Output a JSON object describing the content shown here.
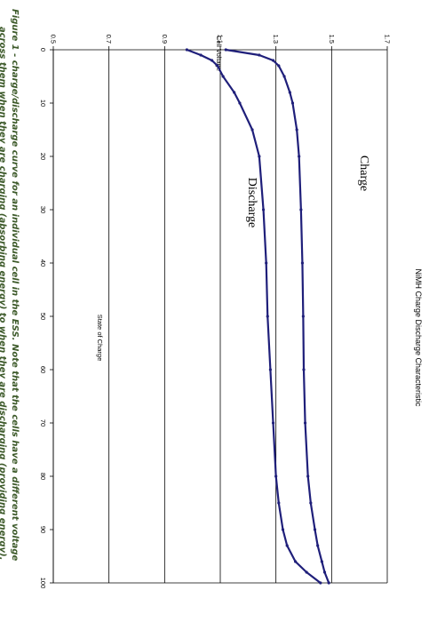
{
  "chart_data": {
    "type": "line",
    "title": "NiMH Charge Discharge Characteristic",
    "xlabel": "State of Charge",
    "ylabel": "Cell Voltage",
    "xlim": [
      0,
      100
    ],
    "ylim": [
      0.5,
      1.7
    ],
    "x_ticks": [
      "0",
      "10",
      "20",
      "30",
      "40",
      "50",
      "60",
      "70",
      "80",
      "90",
      "100"
    ],
    "y_ticks": [
      "0.5",
      "0.7",
      "0.9",
      "1.1",
      "1.3",
      "1.5",
      "1.7"
    ],
    "grid": "horizontal",
    "legend": "none",
    "x": [
      0,
      1,
      2,
      3,
      5,
      8,
      10,
      15,
      20,
      30,
      40,
      50,
      60,
      70,
      80,
      85,
      90,
      93,
      96,
      98,
      100
    ],
    "series": [
      {
        "name": "Charge",
        "color": "#1f1f7a",
        "values": [
          1.12,
          1.24,
          1.29,
          1.31,
          1.33,
          1.35,
          1.36,
          1.375,
          1.383,
          1.39,
          1.395,
          1.398,
          1.4,
          1.405,
          1.415,
          1.425,
          1.44,
          1.45,
          1.465,
          1.475,
          1.49
        ]
      },
      {
        "name": "Discharge",
        "color": "#1f1f7a",
        "values": [
          0.98,
          1.03,
          1.07,
          1.09,
          1.11,
          1.15,
          1.17,
          1.215,
          1.24,
          1.255,
          1.265,
          1.27,
          1.28,
          1.29,
          1.3,
          1.31,
          1.325,
          1.34,
          1.37,
          1.41,
          1.46
        ]
      }
    ],
    "annotations": [
      "Charge",
      "Discharge"
    ]
  },
  "caption": {
    "line1": "Figure 1 - charge/discharge curve  for  an  individual cell in the ESS. Note that the cells have a different voltage",
    "line2": "across them when they are charging (absorbing energy) to when they are discharging (providing energy)."
  }
}
